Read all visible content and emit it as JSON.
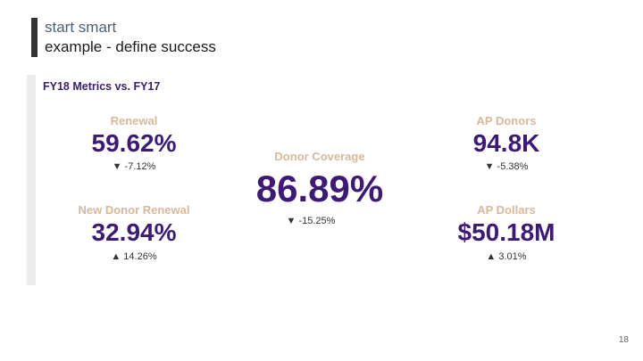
{
  "slide": {
    "title_line1": "start smart",
    "title_line2": "example - define success",
    "page_number": "18"
  },
  "panel": {
    "title": "FY18 Metrics vs. FY17",
    "metrics": {
      "renewal": {
        "label": "Renewal",
        "value": "59.62%",
        "change": "▼ -7.12%"
      },
      "new_donor_renewal": {
        "label": "New Donor Renewal",
        "value": "32.94%",
        "change": "▲ 14.26%"
      },
      "donor_coverage": {
        "label": "Donor Coverage",
        "value": "86.89%",
        "change": "▼ -15.25%"
      },
      "ap_donors": {
        "label": "AP Donors",
        "value": "94.8K",
        "change": "▼ -5.38%"
      },
      "ap_dollars": {
        "label": "AP Dollars",
        "value": "$50.18M",
        "change": "▲ 3.01%"
      }
    }
  },
  "colors": {
    "label": "#d6b99a",
    "value": "#3d1a78",
    "title_accent": "#4a6070"
  }
}
